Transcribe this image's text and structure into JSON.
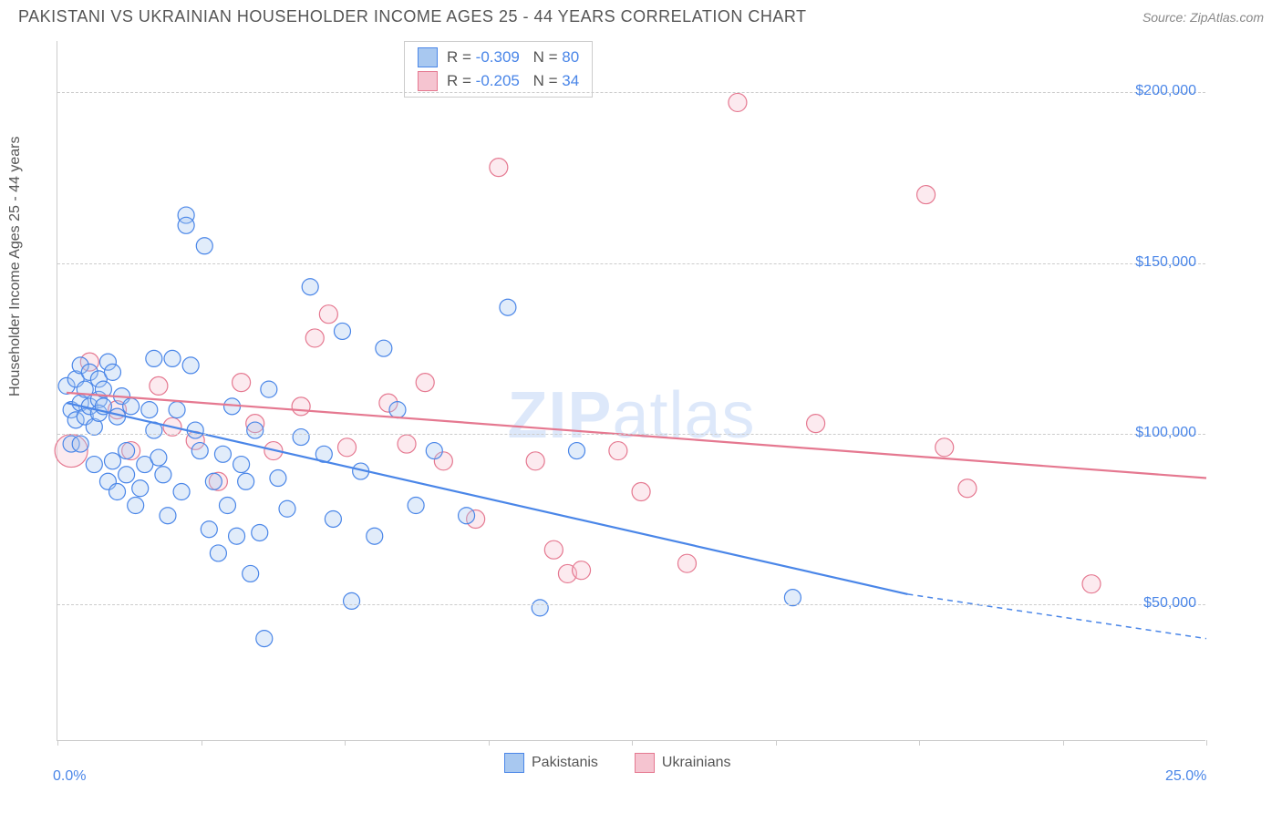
{
  "header": {
    "title": "PAKISTANI VS UKRAINIAN HOUSEHOLDER INCOME AGES 25 - 44 YEARS CORRELATION CHART",
    "source_label": "Source: ZipAtlas.com"
  },
  "chart": {
    "type": "scatter",
    "y_axis_label": "Householder Income Ages 25 - 44 years",
    "x_min": 0.0,
    "x_max": 25.0,
    "y_min": 10000,
    "y_max": 215000,
    "x_tick_positions": [
      0,
      3.125,
      6.25,
      9.375,
      12.5,
      15.625,
      18.75,
      21.875,
      25.0
    ],
    "x_tick_labels_shown": {
      "0": "0.0%",
      "25": "25.0%"
    },
    "y_grid": [
      {
        "value": 50000,
        "label": "$50,000"
      },
      {
        "value": 100000,
        "label": "$100,000"
      },
      {
        "value": 150000,
        "label": "$150,000"
      },
      {
        "value": 200000,
        "label": "$200,000"
      }
    ],
    "watermark": {
      "text1": "ZIP",
      "text2": "atlas"
    },
    "background_color": "#ffffff",
    "grid_color": "#cccccc",
    "series": [
      {
        "name": "Pakistanis",
        "key": "pakistanis",
        "stroke": "#4a86e8",
        "fill": "#a8c8f0",
        "R": "-0.309",
        "N": "80",
        "marker_radius": 9,
        "trend": {
          "x1": 0.2,
          "y1": 109000,
          "x2": 18.5,
          "y2": 53000,
          "dash_extend_to_x": 25.0,
          "dash_extend_to_y": 40000
        },
        "points": [
          {
            "x": 0.2,
            "y": 114000
          },
          {
            "x": 0.3,
            "y": 107000
          },
          {
            "x": 0.3,
            "y": 97000
          },
          {
            "x": 0.4,
            "y": 116000
          },
          {
            "x": 0.4,
            "y": 104000
          },
          {
            "x": 0.5,
            "y": 120000
          },
          {
            "x": 0.5,
            "y": 109000
          },
          {
            "x": 0.5,
            "y": 97000
          },
          {
            "x": 0.6,
            "y": 113000
          },
          {
            "x": 0.6,
            "y": 105000
          },
          {
            "x": 0.7,
            "y": 118000
          },
          {
            "x": 0.7,
            "y": 108000
          },
          {
            "x": 0.8,
            "y": 102000
          },
          {
            "x": 0.8,
            "y": 91000
          },
          {
            "x": 0.9,
            "y": 116000
          },
          {
            "x": 0.9,
            "y": 110000
          },
          {
            "x": 0.9,
            "y": 106000
          },
          {
            "x": 1.0,
            "y": 113000
          },
          {
            "x": 1.0,
            "y": 108000
          },
          {
            "x": 1.1,
            "y": 86000
          },
          {
            "x": 1.1,
            "y": 121000
          },
          {
            "x": 1.2,
            "y": 118000
          },
          {
            "x": 1.2,
            "y": 92000
          },
          {
            "x": 1.3,
            "y": 83000
          },
          {
            "x": 1.3,
            "y": 105000
          },
          {
            "x": 1.4,
            "y": 111000
          },
          {
            "x": 1.5,
            "y": 95000
          },
          {
            "x": 1.5,
            "y": 88000
          },
          {
            "x": 1.6,
            "y": 108000
          },
          {
            "x": 1.7,
            "y": 79000
          },
          {
            "x": 1.8,
            "y": 84000
          },
          {
            "x": 1.9,
            "y": 91000
          },
          {
            "x": 2.0,
            "y": 107000
          },
          {
            "x": 2.1,
            "y": 122000
          },
          {
            "x": 2.1,
            "y": 101000
          },
          {
            "x": 2.2,
            "y": 93000
          },
          {
            "x": 2.3,
            "y": 88000
          },
          {
            "x": 2.4,
            "y": 76000
          },
          {
            "x": 2.5,
            "y": 122000
          },
          {
            "x": 2.6,
            "y": 107000
          },
          {
            "x": 2.7,
            "y": 83000
          },
          {
            "x": 2.8,
            "y": 164000
          },
          {
            "x": 2.8,
            "y": 161000
          },
          {
            "x": 2.9,
            "y": 120000
          },
          {
            "x": 3.0,
            "y": 101000
          },
          {
            "x": 3.1,
            "y": 95000
          },
          {
            "x": 3.2,
            "y": 155000
          },
          {
            "x": 3.3,
            "y": 72000
          },
          {
            "x": 3.4,
            "y": 86000
          },
          {
            "x": 3.5,
            "y": 65000
          },
          {
            "x": 3.6,
            "y": 94000
          },
          {
            "x": 3.7,
            "y": 79000
          },
          {
            "x": 3.8,
            "y": 108000
          },
          {
            "x": 3.9,
            "y": 70000
          },
          {
            "x": 4.0,
            "y": 91000
          },
          {
            "x": 4.1,
            "y": 86000
          },
          {
            "x": 4.2,
            "y": 59000
          },
          {
            "x": 4.3,
            "y": 101000
          },
          {
            "x": 4.4,
            "y": 71000
          },
          {
            "x": 4.5,
            "y": 40000
          },
          {
            "x": 4.6,
            "y": 113000
          },
          {
            "x": 4.8,
            "y": 87000
          },
          {
            "x": 5.0,
            "y": 78000
          },
          {
            "x": 5.3,
            "y": 99000
          },
          {
            "x": 5.5,
            "y": 143000
          },
          {
            "x": 5.8,
            "y": 94000
          },
          {
            "x": 6.0,
            "y": 75000
          },
          {
            "x": 6.2,
            "y": 130000
          },
          {
            "x": 6.4,
            "y": 51000
          },
          {
            "x": 6.6,
            "y": 89000
          },
          {
            "x": 6.9,
            "y": 70000
          },
          {
            "x": 7.1,
            "y": 125000
          },
          {
            "x": 7.4,
            "y": 107000
          },
          {
            "x": 7.8,
            "y": 79000
          },
          {
            "x": 8.2,
            "y": 95000
          },
          {
            "x": 8.9,
            "y": 76000
          },
          {
            "x": 9.8,
            "y": 137000
          },
          {
            "x": 10.5,
            "y": 49000
          },
          {
            "x": 11.3,
            "y": 95000
          },
          {
            "x": 16.0,
            "y": 52000
          }
        ]
      },
      {
        "name": "Ukrainians",
        "key": "ukrainians",
        "stroke": "#e57890",
        "fill": "#f5c4d0",
        "R": "-0.205",
        "N": "34",
        "marker_radius": 10,
        "trend": {
          "x1": 0.2,
          "y1": 112000,
          "x2": 25.0,
          "y2": 87000
        },
        "points": [
          {
            "x": 0.3,
            "y": 95000,
            "r": 18
          },
          {
            "x": 0.7,
            "y": 121000
          },
          {
            "x": 1.3,
            "y": 107000
          },
          {
            "x": 1.6,
            "y": 95000
          },
          {
            "x": 2.2,
            "y": 114000
          },
          {
            "x": 2.5,
            "y": 102000
          },
          {
            "x": 3.0,
            "y": 98000
          },
          {
            "x": 3.5,
            "y": 86000
          },
          {
            "x": 4.0,
            "y": 115000
          },
          {
            "x": 4.3,
            "y": 103000
          },
          {
            "x": 4.7,
            "y": 95000
          },
          {
            "x": 5.3,
            "y": 108000
          },
          {
            "x": 5.6,
            "y": 128000
          },
          {
            "x": 5.9,
            "y": 135000
          },
          {
            "x": 6.3,
            "y": 96000
          },
          {
            "x": 7.2,
            "y": 109000
          },
          {
            "x": 7.6,
            "y": 97000
          },
          {
            "x": 8.0,
            "y": 115000
          },
          {
            "x": 8.4,
            "y": 92000
          },
          {
            "x": 9.1,
            "y": 75000
          },
          {
            "x": 9.6,
            "y": 178000
          },
          {
            "x": 10.4,
            "y": 92000
          },
          {
            "x": 10.8,
            "y": 66000
          },
          {
            "x": 11.1,
            "y": 59000
          },
          {
            "x": 11.4,
            "y": 60000
          },
          {
            "x": 12.2,
            "y": 95000
          },
          {
            "x": 12.7,
            "y": 83000
          },
          {
            "x": 13.7,
            "y": 62000
          },
          {
            "x": 14.8,
            "y": 197000
          },
          {
            "x": 16.5,
            "y": 103000
          },
          {
            "x": 18.9,
            "y": 170000
          },
          {
            "x": 19.3,
            "y": 96000
          },
          {
            "x": 19.8,
            "y": 84000
          },
          {
            "x": 22.5,
            "y": 56000
          }
        ]
      }
    ]
  }
}
